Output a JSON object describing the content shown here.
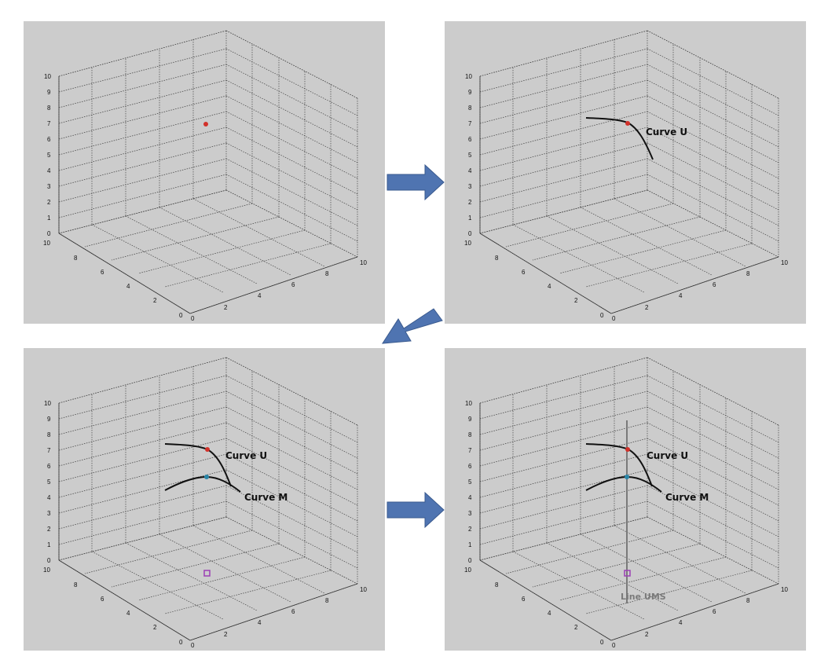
{
  "axis": {
    "z_ticks": [
      "0",
      "1",
      "2",
      "3",
      "4",
      "5",
      "6",
      "7",
      "8",
      "9",
      "10"
    ],
    "x_ticks": [
      "0",
      "2",
      "4",
      "6",
      "8",
      "10"
    ],
    "y_ticks": [
      "0",
      "2",
      "4",
      "6",
      "8",
      "10"
    ]
  },
  "panels": [
    {
      "id": "step-1",
      "labels": []
    },
    {
      "id": "step-2",
      "labels": [
        "Curve U"
      ]
    },
    {
      "id": "step-3",
      "labels": [
        "Curve U",
        "Curve M"
      ]
    },
    {
      "id": "step-4",
      "labels": [
        "Curve U",
        "Curve M",
        "Line UMS"
      ]
    }
  ],
  "colors": {
    "panel_background": "#cccccc",
    "grid": "#444444",
    "arrow_fill": "#4f74b1",
    "arrow_stroke": "#3a5a8e",
    "point_u": "#d2312a",
    "point_m": "#2a86a8",
    "square_marker": "#9b3fb5",
    "line_ums": "#7a7a7a"
  },
  "arrows": [
    "right-arrow",
    "down-left-arrow",
    "right-arrow"
  ]
}
